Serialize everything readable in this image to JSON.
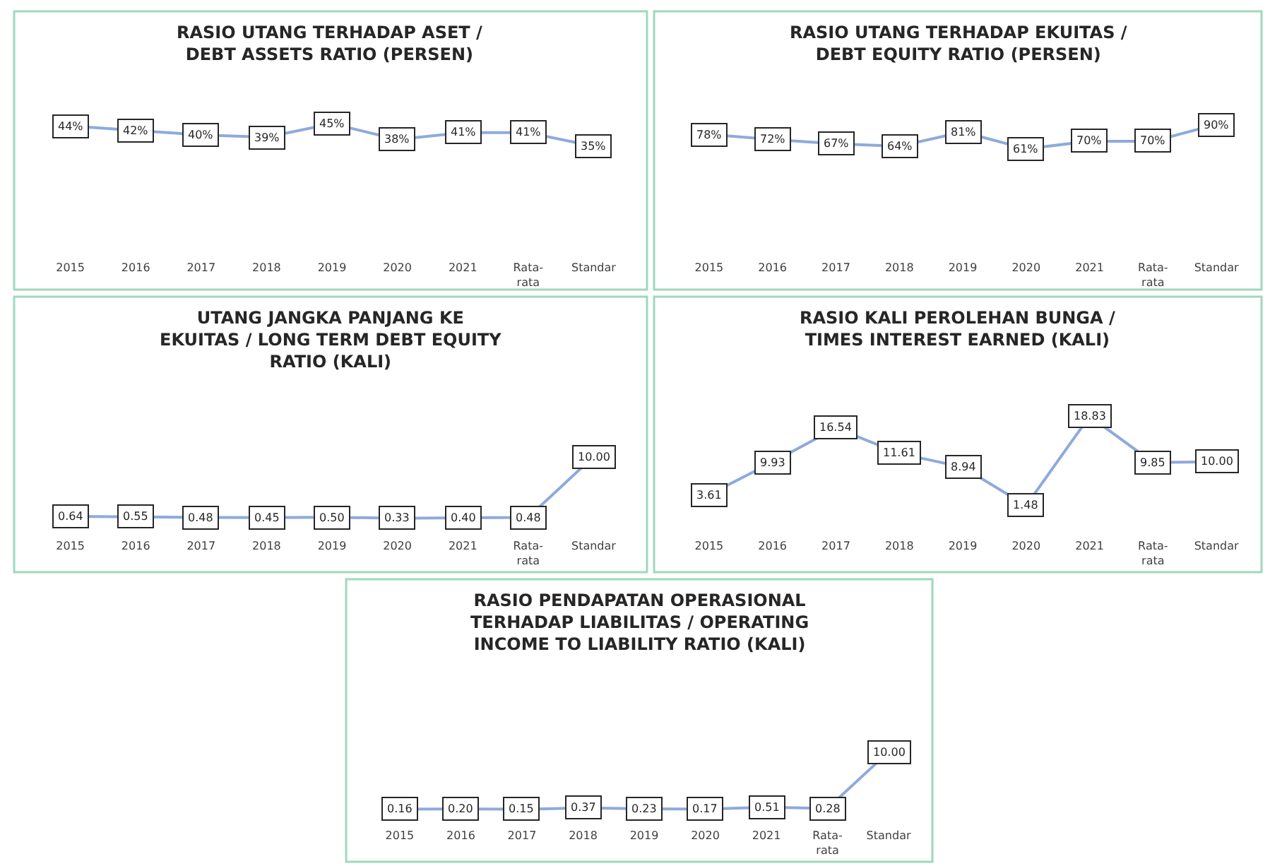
{
  "chart_data": [
    {
      "type": "line",
      "title": "RASIO UTANG TERHADAP ASET /\nDEBT ASSETS RATIO (PERSEN)",
      "categories": [
        "2015",
        "2016",
        "2017",
        "2018",
        "2019",
        "2020",
        "2021",
        "Rata-\nrata",
        "Standar"
      ],
      "series": [
        {
          "color": "#8eaadb",
          "values": [
            44,
            42,
            40,
            39,
            45,
            38,
            41,
            41,
            35
          ],
          "value_labels": [
            "44%",
            "42%",
            "40%",
            "39%",
            "45%",
            "38%",
            "41%",
            "41%",
            "35%"
          ]
        }
      ],
      "marker": "square",
      "grid": false
    },
    {
      "type": "line",
      "title": "RASIO UTANG TERHADAP EKUITAS /\nDEBT EQUITY RATIO (PERSEN)",
      "categories": [
        "2015",
        "2016",
        "2017",
        "2018",
        "2019",
        "2020",
        "2021",
        "Rata-\nrata",
        "Standar"
      ],
      "series": [
        {
          "color": "#8eaadb",
          "values": [
            78,
            72,
            67,
            64,
            81,
            61,
            70,
            70,
            90
          ],
          "value_labels": [
            "78%",
            "72%",
            "67%",
            "64%",
            "81%",
            "61%",
            "70%",
            "70%",
            "90%"
          ]
        }
      ],
      "marker": "square",
      "grid": false
    },
    {
      "type": "line",
      "title": "UTANG JANGKA PANJANG KE\nEKUITAS / LONG TERM DEBT EQUITY\nRATIO (KALI)",
      "categories": [
        "2015",
        "2016",
        "2017",
        "2018",
        "2019",
        "2020",
        "2021",
        "Rata-\nrata",
        "Standar"
      ],
      "series": [
        {
          "color": "#8eaadb",
          "values": [
            0.64,
            0.55,
            0.48,
            0.45,
            0.5,
            0.33,
            0.4,
            0.48,
            10.0
          ],
          "value_labels": [
            "0.64",
            "0.55",
            "0.48",
            "0.45",
            "0.50",
            "0.33",
            "0.40",
            "0.48",
            "10.00"
          ]
        }
      ],
      "marker": "square",
      "grid": false
    },
    {
      "type": "line",
      "title": "RASIO KALI PEROLEHAN BUNGA /\nTIMES INTEREST EARNED (KALI)",
      "categories": [
        "2015",
        "2016",
        "2017",
        "2018",
        "2019",
        "2020",
        "2021",
        "Rata-\nrata",
        "Standar"
      ],
      "series": [
        {
          "color": "#8eaadb",
          "values": [
            3.61,
            9.93,
            16.54,
            11.61,
            8.94,
            1.48,
            18.83,
            9.85,
            10.0
          ],
          "value_labels": [
            "3.61",
            "9.93",
            "16.54",
            "11.61",
            "8.94",
            "1.48",
            "18.83",
            "9.85",
            "10.00"
          ]
        }
      ],
      "marker": "square",
      "grid": false
    },
    {
      "type": "line",
      "title": "RASIO PENDAPATAN OPERASIONAL\nTERHADAP LIABILITAS / OPERATING\nINCOME TO LIABILITY RATIO (KALI)",
      "categories": [
        "2015",
        "2016",
        "2017",
        "2018",
        "2019",
        "2020",
        "2021",
        "Rata-\nrata",
        "Standar"
      ],
      "series": [
        {
          "color": "#8eaadb",
          "values": [
            0.16,
            0.2,
            0.15,
            0.37,
            0.23,
            0.17,
            0.51,
            0.28,
            10.0
          ],
          "value_labels": [
            "0.16",
            "0.20",
            "0.15",
            "0.37",
            "0.23",
            "0.17",
            "0.51",
            "0.28",
            "10.00"
          ]
        }
      ],
      "marker": "square",
      "grid": false
    }
  ]
}
